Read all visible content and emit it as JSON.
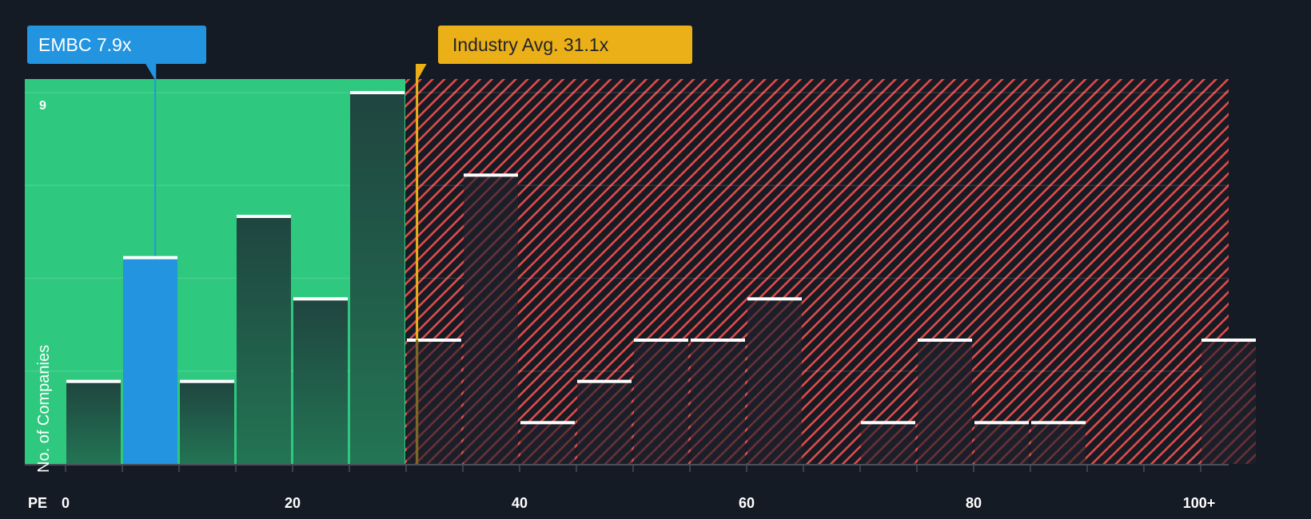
{
  "chart_data": {
    "type": "bar",
    "title": "",
    "xlabel": "PE",
    "ylabel": "No. of Companies",
    "x_ticks": [
      "0",
      "20",
      "40",
      "60",
      "80",
      "100+"
    ],
    "y_ticks": [
      "9"
    ],
    "ylim": [
      0,
      9
    ],
    "bin_width": 5,
    "categories": [
      "0-5",
      "5-10",
      "10-15",
      "15-20",
      "20-25",
      "25-30",
      "30-35",
      "35-40",
      "40-45",
      "45-50",
      "50-55",
      "55-60",
      "60-65",
      "65-70",
      "70-75",
      "75-80",
      "80-85",
      "85-90",
      "90-95",
      "95-100",
      "100+"
    ],
    "values": [
      2,
      5,
      2,
      6,
      4,
      9,
      3,
      7,
      1,
      2,
      3,
      3,
      4,
      0,
      1,
      3,
      1,
      1,
      0,
      0,
      3
    ],
    "highlight_bin": "5-10",
    "grid": true,
    "annotations": [
      {
        "label": "EMBC 7.9x",
        "x": 7.9,
        "color": "#2394df"
      },
      {
        "label": "Industry Avg. 31.1x",
        "x": 31.1,
        "color": "#ebb017"
      }
    ],
    "regions": [
      {
        "name": "undervalued",
        "from": 0,
        "to": 30,
        "color": "#2ec97f"
      },
      {
        "name": "overvalued",
        "from": 30,
        "to": "100+",
        "color": "#e24b4b",
        "pattern": "diagonal-hatch"
      }
    ]
  },
  "labels": {
    "company": "EMBC 7.9x",
    "industry": "Industry Avg. 31.1x",
    "y_axis": "No. of Companies",
    "x_axis": "PE",
    "y_max_tick": "9"
  },
  "colors": {
    "background": "#151b24",
    "green_region": "#2ec97f",
    "red_hatch": "#e24b4b",
    "company_blue": "#2394df",
    "industry_yellow": "#ebb017",
    "bar_dark": "#1f4a3d"
  }
}
